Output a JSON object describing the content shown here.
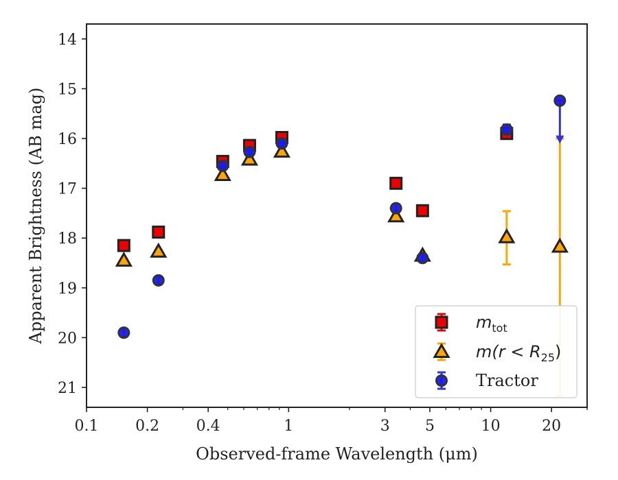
{
  "chart_data": {
    "type": "scatter",
    "xlabel": "Observed-frame Wavelength (μm)",
    "ylabel": "Apparent Brightness (AB mag)",
    "xscale": "log",
    "xlim": [
      0.1,
      30
    ],
    "ylim": [
      21.4,
      13.7
    ],
    "y_inverted": true,
    "x_ticks": [
      {
        "value": 0.1,
        "label": "0.1"
      },
      {
        "value": 0.2,
        "label": "0.2"
      },
      {
        "value": 0.4,
        "label": "0.4"
      },
      {
        "value": 1,
        "label": "1"
      },
      {
        "value": 3,
        "label": "3"
      },
      {
        "value": 5,
        "label": "5"
      },
      {
        "value": 10,
        "label": "10"
      },
      {
        "value": 20,
        "label": "20"
      }
    ],
    "y_ticks": [
      {
        "value": 14,
        "label": "14"
      },
      {
        "value": 15,
        "label": "15"
      },
      {
        "value": 16,
        "label": "16"
      },
      {
        "value": 17,
        "label": "17"
      },
      {
        "value": 18,
        "label": "18"
      },
      {
        "value": 19,
        "label": "19"
      },
      {
        "value": 20,
        "label": "20"
      },
      {
        "value": 21,
        "label": "21"
      }
    ],
    "legend_position": "lower-right",
    "series": [
      {
        "name_base": "m",
        "name_sub": "tot",
        "marker": "square",
        "color": "#ee0000",
        "edge_color": "#222222",
        "errorbar_color": "#ee0000",
        "points": [
          {
            "x": 0.153,
            "y": 18.15,
            "yerr": 0.03
          },
          {
            "x": 0.227,
            "y": 17.88,
            "yerr": 0.03
          },
          {
            "x": 0.472,
            "y": 16.46,
            "yerr": 0.03
          },
          {
            "x": 0.641,
            "y": 16.14,
            "yerr": 0.03
          },
          {
            "x": 0.926,
            "y": 15.98,
            "yerr": 0.03
          },
          {
            "x": 3.4,
            "y": 16.9,
            "yerr": 0.03
          },
          {
            "x": 4.6,
            "y": 17.45,
            "yerr": 0.03
          },
          {
            "x": 12.0,
            "y": 15.9,
            "yerr": 0.05
          }
        ]
      },
      {
        "name_base": "m",
        "name_rest": "(r < R",
        "name_sub": "25",
        "name_close": ")",
        "marker": "triangle",
        "color": "#ffa500",
        "edge_color": "#222222",
        "errorbar_color": "#ffa500",
        "points": [
          {
            "x": 0.153,
            "y": 18.45,
            "yerr": 0.03
          },
          {
            "x": 0.227,
            "y": 18.27,
            "yerr": 0.03
          },
          {
            "x": 0.472,
            "y": 16.73,
            "yerr": 0.03
          },
          {
            "x": 0.641,
            "y": 16.42,
            "yerr": 0.03
          },
          {
            "x": 0.926,
            "y": 16.26,
            "yerr": 0.03
          },
          {
            "x": 3.4,
            "y": 17.56,
            "yerr": 0.03
          },
          {
            "x": 4.6,
            "y": 18.35,
            "yerr": 0.03
          },
          {
            "x": 12.0,
            "y": 17.98,
            "yerr_low": 0.52,
            "yerr_high": 0.55
          },
          {
            "x": 22.0,
            "y": 18.17,
            "yerr_low": 2.17,
            "yerr_high": 3.0
          }
        ]
      },
      {
        "name": "Tractor",
        "marker": "circle",
        "color": "#1a1aee",
        "edge_color": "#333333",
        "errorbar_color": "#3333dd",
        "points": [
          {
            "x": 0.153,
            "y": 19.9,
            "yerr": 0.08
          },
          {
            "x": 0.227,
            "y": 18.85,
            "yerr": 0.07
          },
          {
            "x": 0.472,
            "y": 16.55,
            "yerr": 0.04
          },
          {
            "x": 0.641,
            "y": 16.27,
            "yerr": 0.04
          },
          {
            "x": 0.926,
            "y": 16.1,
            "yerr": 0.04
          },
          {
            "x": 3.4,
            "y": 17.4,
            "yerr": 0.08
          },
          {
            "x": 4.6,
            "y": 18.4,
            "yerr": 0.06
          },
          {
            "x": 12.0,
            "y": 15.82,
            "yerr": 0.1
          },
          {
            "x": 22.0,
            "y": 15.24,
            "upper_limit": true,
            "arrow_to": 16.05
          }
        ]
      }
    ]
  }
}
